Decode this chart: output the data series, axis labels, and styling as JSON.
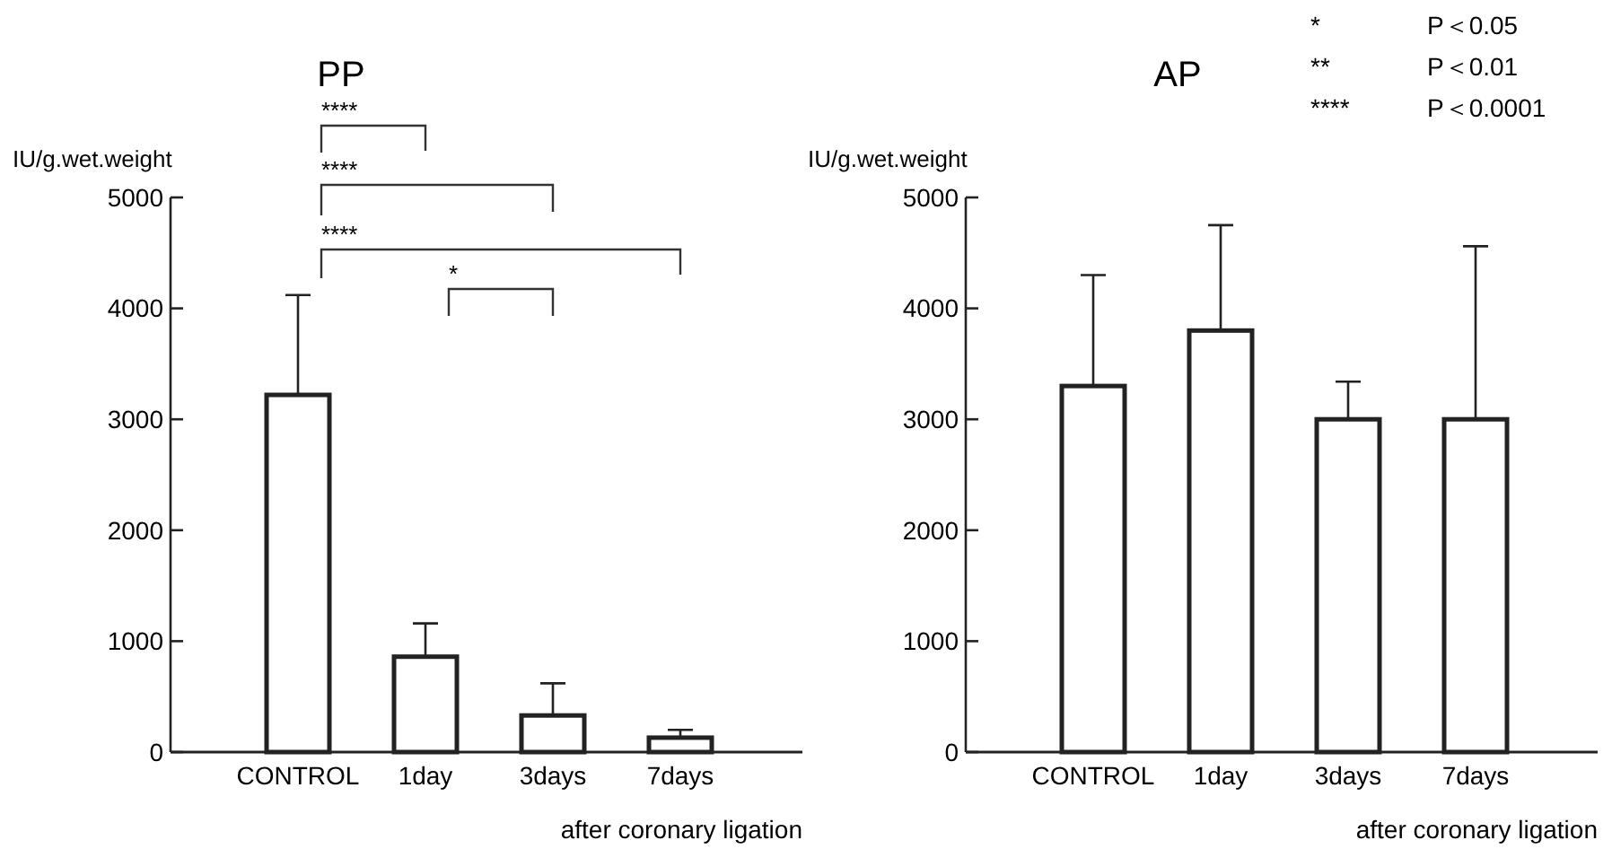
{
  "chart_data": [
    {
      "type": "bar",
      "title": "PP",
      "ylabel": "IU/g.wet.weight",
      "xlabel": "after coronary ligation",
      "categories": [
        "CONTROL",
        "1day",
        "3days",
        "7days"
      ],
      "values": [
        3220,
        860,
        330,
        130
      ],
      "errors": [
        [
          3220,
          4120
        ],
        [
          860,
          1160
        ],
        [
          330,
          620
        ],
        [
          130,
          200
        ]
      ],
      "color": "#ffffff",
      "ylim": [
        0,
        5000
      ],
      "yticks": [
        0,
        1000,
        2000,
        3000,
        4000,
        5000
      ],
      "annotations": [
        "****",
        "****",
        "****",
        "*"
      ]
    },
    {
      "type": "bar",
      "title": "AP",
      "ylabel": "IU/g.wet.weight",
      "xlabel": "after coronary ligation",
      "categories": [
        "CONTROL",
        "1day",
        "3days",
        "7days"
      ],
      "values": [
        3300,
        3800,
        3000,
        3000
      ],
      "errors": [
        [
          3300,
          4300
        ],
        [
          3800,
          4750
        ],
        [
          3000,
          3340
        ],
        [
          3000,
          4560
        ]
      ],
      "color": "#ffffff",
      "ylim": [
        0,
        5000
      ],
      "yticks": [
        0,
        1000,
        2000,
        3000,
        4000,
        5000
      ],
      "annotations": [
        "*  P＜0.05",
        "**  P＜0.01",
        "****  P＜0.0001"
      ]
    }
  ]
}
